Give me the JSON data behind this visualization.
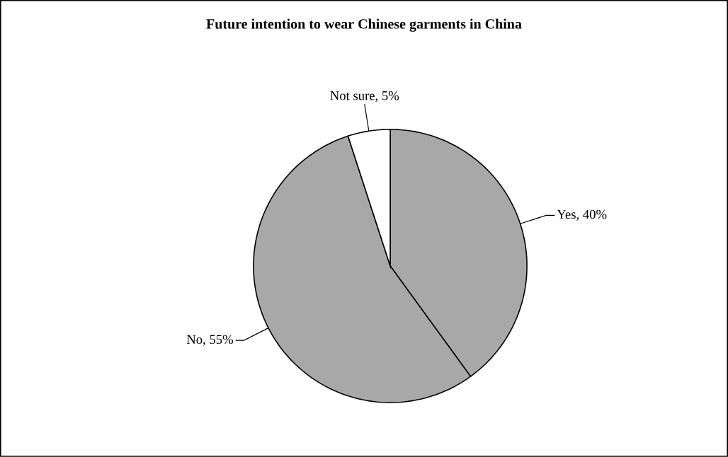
{
  "chart_data": {
    "type": "pie",
    "title": "Future intention to wear Chinese garments in China",
    "categories": [
      "Yes",
      "No",
      "Not sure"
    ],
    "values": [
      40,
      55,
      5
    ],
    "colors": [
      "#a8a8a8",
      "#a8a8a8",
      "#ffffff"
    ],
    "value_labels": [
      ", 40%",
      ", 55%",
      ", 5%"
    ]
  }
}
